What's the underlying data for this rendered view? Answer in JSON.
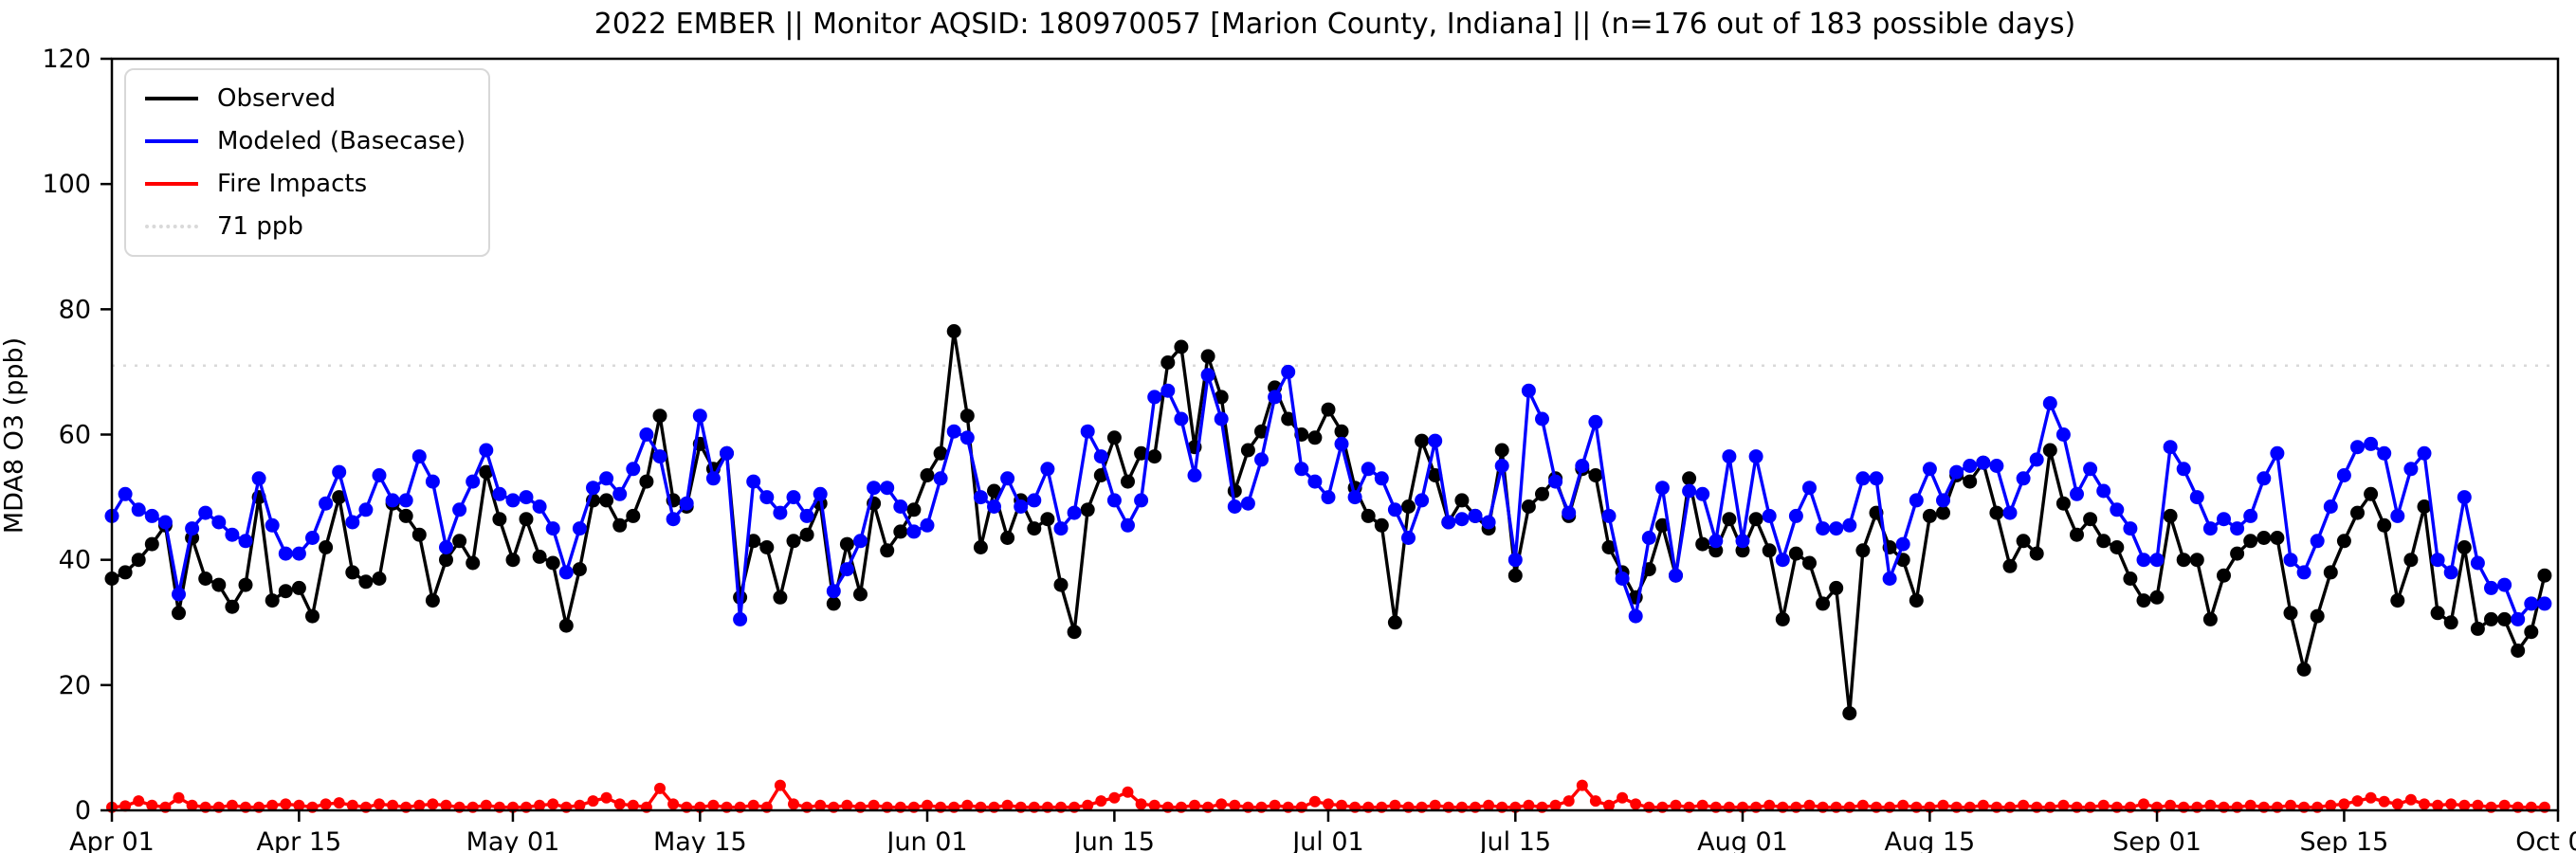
{
  "page": {
    "background": "#ffffff"
  },
  "chart_data": {
    "type": "line",
    "title": "2022 EMBER || Monitor AQSID: 180970057 [Marion County, Indiana] || (n=176 out of 183 possible days)",
    "ylabel": "MDA8 O3 (ppb)",
    "ylim": [
      0,
      120
    ],
    "yticks": [
      0,
      20,
      40,
      60,
      80,
      100,
      120
    ],
    "xlim_days": [
      0,
      183
    ],
    "xticks": [
      {
        "day": 0,
        "label": "Apr 01"
      },
      {
        "day": 14,
        "label": "Apr 15"
      },
      {
        "day": 30,
        "label": "May 01"
      },
      {
        "day": 44,
        "label": "May 15"
      },
      {
        "day": 61,
        "label": "Jun 01"
      },
      {
        "day": 75,
        "label": "Jun 15"
      },
      {
        "day": 91,
        "label": "Jul 01"
      },
      {
        "day": 105,
        "label": "Jul 15"
      },
      {
        "day": 122,
        "label": "Aug 01"
      },
      {
        "day": 136,
        "label": "Aug 15"
      },
      {
        "day": 153,
        "label": "Sep 01"
      },
      {
        "day": 167,
        "label": "Sep 15"
      },
      {
        "day": 183,
        "label": "Oct 01"
      }
    ],
    "threshold": {
      "value": 71,
      "label": "71 ppb",
      "color": "#d9d9d9",
      "style": "dotted"
    },
    "legend": {
      "position": "upper-left",
      "entries": [
        {
          "label": "Observed",
          "color": "#000000",
          "style": "solid"
        },
        {
          "label": "Modeled (Basecase)",
          "color": "#0000ff",
          "style": "solid"
        },
        {
          "label": "Fire Impacts",
          "color": "#ff0000",
          "style": "solid"
        },
        {
          "label": "71 ppb",
          "color": "#d9d9d9",
          "style": "dotted"
        }
      ]
    },
    "series": [
      {
        "name": "Observed",
        "color": "#000000",
        "marker": "circle",
        "values": [
          37,
          38,
          40,
          42.5,
          45.5,
          31.5,
          43.5,
          37,
          36,
          32.5,
          36,
          50,
          33.5,
          35,
          35.5,
          31,
          42,
          50,
          38,
          36.5,
          37,
          49,
          47,
          44,
          33.5,
          40,
          43,
          39.5,
          54,
          46.5,
          40,
          46.5,
          40.5,
          39.5,
          29.5,
          38.5,
          49.5,
          49.5,
          45.5,
          47,
          52.5,
          63,
          49.5,
          48.5,
          58.5,
          54.5,
          57,
          34,
          43,
          42,
          34,
          43,
          44,
          49,
          33,
          42.5,
          34.5,
          49,
          41.5,
          44.5,
          48,
          53.5,
          57,
          76.5,
          63,
          42,
          51,
          43.5,
          49.5,
          45,
          46.5,
          36,
          28.5,
          48,
          53.5,
          59.5,
          52.5,
          57,
          56.5,
          71.5,
          74,
          58,
          72.5,
          66,
          51,
          57.5,
          60.5,
          67.5,
          62.5,
          60,
          59.5,
          64,
          60.5,
          51.5,
          47,
          45.5,
          30,
          48.5,
          59,
          53.5,
          46,
          49.5,
          47,
          45,
          57.5,
          37.5,
          48.5,
          50.5,
          53,
          47,
          54.5,
          53.5,
          42,
          38,
          34,
          38.5,
          45.5,
          37.5,
          53,
          42.5,
          41.5,
          46.5,
          41.5,
          46.5,
          41.5,
          30.5,
          41,
          39.5,
          33,
          35.5,
          15.5,
          41.5,
          47.5,
          42,
          40,
          33.5,
          47,
          47.5,
          53.5,
          52.5,
          55.5,
          47.5,
          39,
          43,
          41,
          57.5,
          49,
          44,
          46.5,
          43,
          42,
          37,
          33.5,
          34,
          47,
          40,
          40,
          30.5,
          37.5,
          41,
          43,
          43.5,
          43.5,
          31.5,
          22.5,
          31,
          38,
          43,
          47.5,
          50.5,
          45.5,
          33.5,
          40,
          48.5,
          31.5,
          30,
          42,
          29,
          30.5,
          30.5,
          25.5,
          28.5,
          37.5
        ]
      },
      {
        "name": "Modeled (Basecase)",
        "color": "#0000ff",
        "marker": "circle",
        "values": [
          47,
          50.5,
          48,
          47,
          46,
          34.5,
          45,
          47.5,
          46,
          44,
          43,
          53,
          45.5,
          41,
          41,
          43.5,
          49,
          54,
          46,
          48,
          53.5,
          49.5,
          49.5,
          56.5,
          52.5,
          42,
          48,
          52.5,
          57.5,
          50.5,
          49.5,
          50,
          48.5,
          45,
          38,
          45,
          51.5,
          53,
          50.5,
          54.5,
          60,
          56.5,
          46.5,
          49,
          63,
          53,
          57,
          30.5,
          52.5,
          50,
          47.5,
          50,
          47,
          50.5,
          35,
          38.5,
          43,
          51.5,
          51.5,
          48.5,
          44.5,
          45.5,
          53,
          60.5,
          59.5,
          50,
          48.5,
          53,
          48.5,
          49.5,
          54.5,
          45,
          47.5,
          60.5,
          56.5,
          49.5,
          45.5,
          49.5,
          66,
          67,
          62.5,
          53.5,
          69.5,
          62.5,
          48.5,
          49,
          56,
          66,
          70,
          54.5,
          52.5,
          50,
          58.5,
          50,
          54.5,
          53,
          48,
          43.5,
          49.5,
          59,
          46,
          46.5,
          47,
          46,
          55,
          40,
          67,
          62.5,
          52.5,
          47.5,
          55,
          62,
          47,
          37,
          31,
          43.5,
          51.5,
          37.5,
          51,
          50.5,
          43,
          56.5,
          43,
          56.5,
          47,
          40,
          47,
          51.5,
          45,
          45,
          45.5,
          53,
          53,
          37,
          42.5,
          49.5,
          54.5,
          49.5,
          54,
          55,
          55.5,
          55,
          47.5,
          53,
          56,
          65,
          60,
          50.5,
          54.5,
          51,
          48,
          45,
          40,
          40,
          58,
          54.5,
          50,
          45,
          46.5,
          45,
          47,
          53,
          57,
          40,
          38,
          43,
          48.5,
          53.5,
          58,
          58.5,
          57,
          47,
          54.5,
          57,
          40,
          38,
          50,
          39.5,
          35.5,
          36,
          30.5,
          33,
          33
        ]
      },
      {
        "name": "Fire Impacts",
        "color": "#ff0000",
        "marker": "circle",
        "values": [
          0.5,
          0.7,
          1.5,
          0.8,
          0.5,
          2,
          0.8,
          0.5,
          0.5,
          0.8,
          0.5,
          0.5,
          0.8,
          1,
          0.8,
          0.5,
          1,
          1.2,
          0.8,
          0.5,
          1,
          0.8,
          0.5,
          0.8,
          1,
          0.8,
          0.5,
          0.5,
          0.8,
          0.5,
          0.5,
          0.5,
          0.8,
          1,
          0.5,
          0.8,
          1.5,
          2,
          1,
          0.8,
          0.5,
          3.5,
          1,
          0.5,
          0.5,
          0.8,
          0.5,
          0.5,
          0.8,
          0.5,
          4,
          1,
          0.5,
          0.8,
          0.5,
          0.8,
          0.5,
          0.8,
          0.5,
          0.5,
          0.5,
          0.8,
          0.5,
          0.5,
          0.8,
          0.5,
          0.5,
          0.8,
          0.5,
          0.5,
          0.5,
          0.5,
          0.5,
          0.8,
          1.5,
          2,
          2.9,
          1,
          0.8,
          0.5,
          0.5,
          0.8,
          0.5,
          1,
          0.8,
          0.5,
          0.5,
          0.8,
          0.5,
          0.5,
          1.4,
          1,
          0.8,
          0.5,
          0.5,
          0.5,
          0.8,
          0.5,
          0.5,
          0.8,
          0.5,
          0.5,
          0.5,
          0.8,
          0.5,
          0.5,
          0.8,
          0.5,
          0.8,
          1.5,
          4,
          1.5,
          0.8,
          2,
          1,
          0.5,
          0.5,
          0.8,
          0.5,
          0.8,
          0.5,
          0.5,
          0.5,
          0.5,
          0.8,
          0.5,
          0.5,
          0.8,
          0.5,
          0.5,
          0.5,
          0.8,
          0.5,
          0.5,
          0.8,
          0.5,
          0.5,
          0.8,
          0.5,
          0.5,
          0.8,
          0.5,
          0.5,
          0.8,
          0.5,
          0.5,
          0.8,
          0.5,
          0.5,
          0.8,
          0.5,
          0.5,
          1,
          0.5,
          0.8,
          0.5,
          0.5,
          0.8,
          0.5,
          0.5,
          0.8,
          0.5,
          0.5,
          0.8,
          0.5,
          0.5,
          0.8,
          1,
          1.5,
          2,
          1.4,
          1,
          1.7,
          1,
          0.8,
          1,
          0.8,
          0.8,
          0.5,
          0.8,
          0.5,
          0.5,
          0.5
        ]
      }
    ]
  }
}
